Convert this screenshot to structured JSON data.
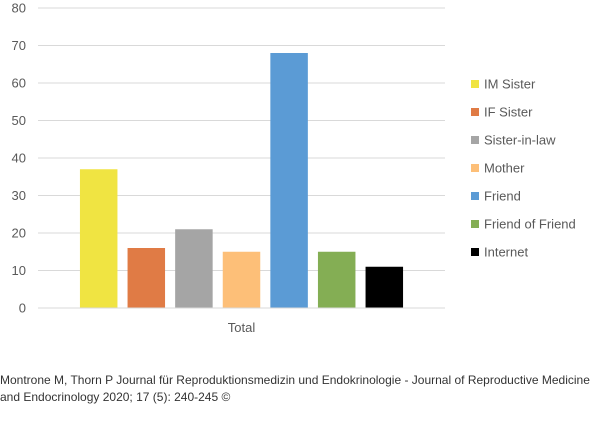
{
  "chart_data": {
    "type": "bar",
    "categories": [
      "Total"
    ],
    "ylim": [
      0,
      80
    ],
    "yticks": [
      0,
      10,
      20,
      30,
      40,
      50,
      60,
      70,
      80
    ],
    "grid": true,
    "legend_position": "right",
    "series": [
      {
        "name": "IM Sister",
        "values": [
          37
        ],
        "color": "#F0E442"
      },
      {
        "name": "IF Sister",
        "values": [
          16
        ],
        "color": "#E07B45"
      },
      {
        "name": "Sister-in-law",
        "values": [
          21
        ],
        "color": "#A5A5A5"
      },
      {
        "name": "Mother",
        "values": [
          15
        ],
        "color": "#FDBF78"
      },
      {
        "name": "Friend",
        "values": [
          68
        ],
        "color": "#5B9BD5"
      },
      {
        "name": "Friend of Friend",
        "values": [
          15
        ],
        "color": "#84AE54"
      },
      {
        "name": "Internet",
        "values": [
          11
        ],
        "color": "#000000"
      }
    ]
  },
  "caption": {
    "line1": "Montrone M, Thorn P Journal für Reproduktionsmedizin und Endokrinologie - Journal of Reproductive Medicine",
    "line2": "and Endocrinology 2020; 17 (5): 240-245 ©"
  }
}
